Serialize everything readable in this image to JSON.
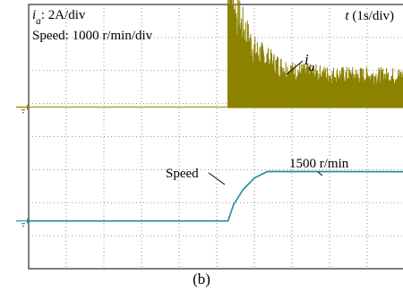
{
  "chart_data": {
    "type": "line",
    "title": "",
    "caption": "(b)",
    "current_scale": {
      "var": "i",
      "sub": "a",
      "text": ": 2A/div"
    },
    "speed_scale": "Speed: 1000 r/min/div",
    "time_scale": {
      "var": "t",
      "text": " (1s/div)"
    },
    "xlim": [
      0,
      10
    ],
    "grid": {
      "x_divisions": 10,
      "y_divisions": 8,
      "visible": true
    },
    "series": [
      {
        "name": "i_a",
        "label": {
          "var": "i",
          "sub": "a"
        },
        "color": "#8b8200",
        "unit": "A",
        "baseline_div": 2.1,
        "points": [
          [
            0,
            0
          ],
          [
            5.3,
            0
          ],
          [
            5.3,
            10.0
          ],
          [
            5.5,
            7.2
          ],
          [
            6.0,
            4.4
          ],
          [
            6.5,
            3.4
          ],
          [
            7.0,
            2.8
          ],
          [
            8.0,
            2.5
          ],
          [
            10.0,
            2.4
          ]
        ]
      },
      {
        "name": "Speed",
        "label": "Speed",
        "color": "#1f8aa0",
        "unit": "r/min",
        "baseline_div": 4.3,
        "points": [
          [
            0,
            0
          ],
          [
            5.3,
            0
          ],
          [
            5.45,
            500
          ],
          [
            5.7,
            950
          ],
          [
            6.0,
            1300
          ],
          [
            6.35,
            1500
          ],
          [
            10.0,
            1490
          ]
        ]
      }
    ],
    "annotations": [
      "1500 r/min"
    ]
  }
}
